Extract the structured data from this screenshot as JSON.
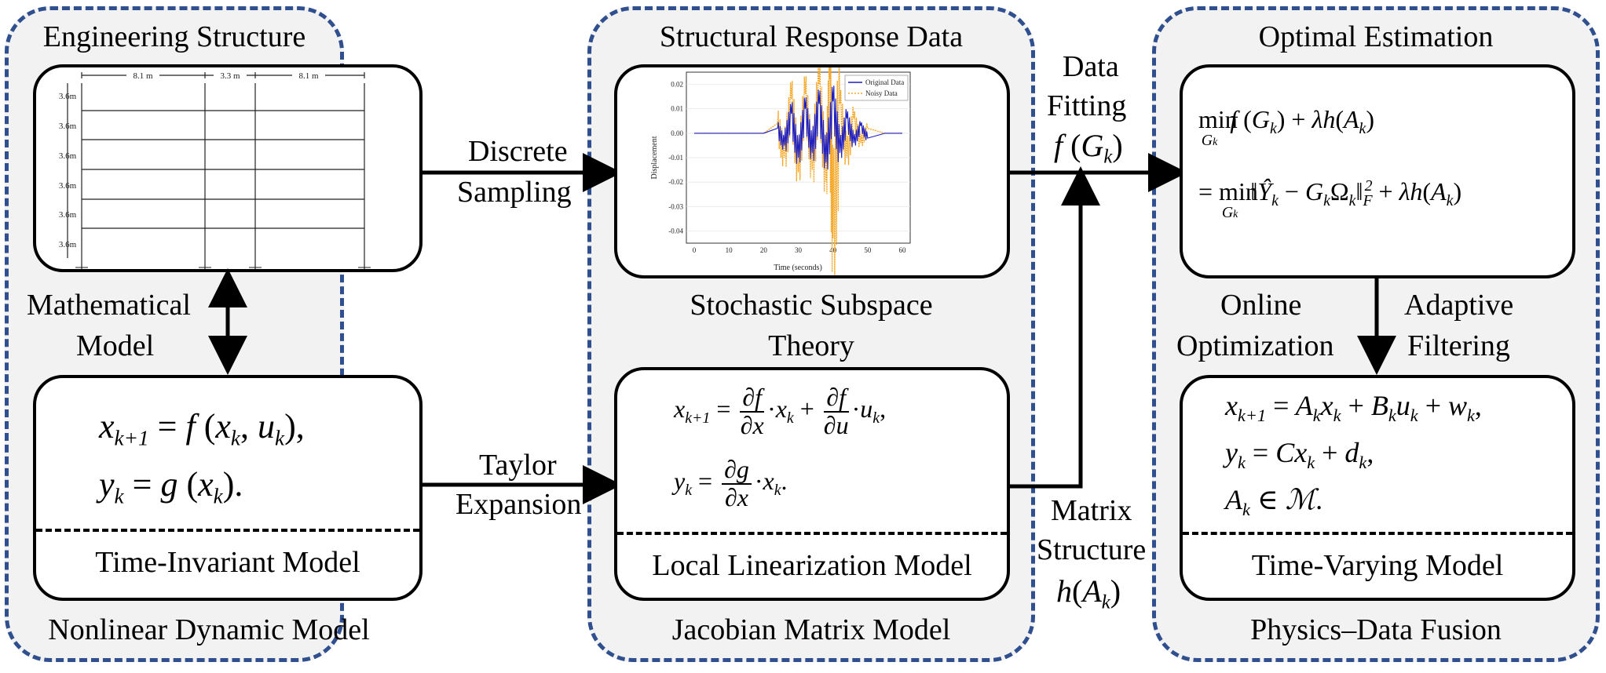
{
  "left": {
    "top_label": "Engineering Structure",
    "frame_dims": [
      "8.1 m",
      "3.3 m",
      "8.1 m"
    ],
    "story_heights": [
      "3.6m",
      "3.6m",
      "3.6m",
      "3.6m",
      "3.6m",
      "3.6m"
    ],
    "mid_label_1": "Mathematical",
    "mid_label_2": "Model",
    "model_label": "Time-Invariant Model",
    "bottom_label": "Nonlinear Dynamic Model"
  },
  "middle": {
    "top_label": "Structural Response Data",
    "mid_label_1": "Stochastic Subspace",
    "mid_label_2": "Theory",
    "model_label": "Local Linearization Model",
    "bottom_label": "Jacobian Matrix Model"
  },
  "right": {
    "top_label": "Optimal Estimation",
    "mid_left_1": "Online",
    "mid_left_2": "Optimization",
    "mid_right_1": "Adaptive",
    "mid_right_2": "Filtering",
    "model_label": "Time-Varying Model",
    "bottom_label": "Physics–Data Fusion"
  },
  "arrows": {
    "discrete_1": "Discrete",
    "discrete_2": "Sampling",
    "taylor_1": "Taylor",
    "taylor_2": "Expansion",
    "fit_1": "Data",
    "fit_2": "Fitting",
    "matrix_1": "Matrix",
    "matrix_2": "Structure"
  },
  "plot": {
    "ylabel": "Displacement",
    "xlabel": "Time (seconds)",
    "xticks": [
      "0",
      "10",
      "20",
      "30",
      "40",
      "50",
      "60"
    ],
    "yticks": [
      "0.02",
      "0.01",
      "0.00",
      "-0.01",
      "-0.02",
      "-0.03",
      "-0.04"
    ],
    "legend": [
      "Original Data",
      "Noisy Data"
    ],
    "colors": {
      "original": "#1f1fbf",
      "noisy": "#f5a623"
    }
  },
  "chart_data": {
    "type": "line",
    "title": "",
    "xlabel": "Time (seconds)",
    "ylabel": "Displacement",
    "xlim": [
      0,
      60
    ],
    "ylim": [
      -0.045,
      0.025
    ],
    "legend_position": "top-right",
    "series": [
      {
        "name": "Original Data",
        "x": [
          0,
          20,
          24,
          26,
          28,
          30,
          32,
          34,
          36,
          38,
          40,
          42,
          44,
          46,
          48,
          50,
          55,
          60
        ],
        "y": [
          0,
          0,
          0.002,
          -0.005,
          0.008,
          -0.01,
          0.01,
          -0.008,
          0.012,
          -0.012,
          0.013,
          -0.008,
          0.006,
          -0.004,
          0.003,
          -0.002,
          0,
          0
        ]
      },
      {
        "name": "Noisy Data",
        "x": [
          0,
          20,
          24,
          26,
          28,
          30,
          32,
          34,
          36,
          38,
          39,
          40,
          42,
          44,
          46,
          48,
          50,
          55,
          60
        ],
        "y": [
          0,
          0,
          0.004,
          -0.01,
          0.014,
          -0.016,
          0.016,
          -0.015,
          0.02,
          -0.02,
          0.022,
          -0.043,
          0.012,
          -0.01,
          0.006,
          -0.004,
          0.002,
          0,
          0
        ]
      }
    ]
  }
}
